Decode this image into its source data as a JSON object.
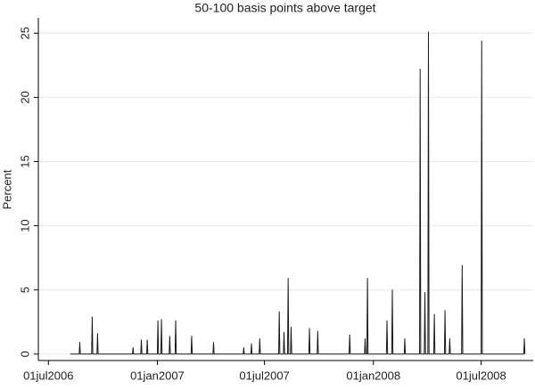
{
  "chart_data": {
    "type": "line",
    "title": "50-100 basis points above target",
    "ylabel": "Percent",
    "x": [
      "2006-08-07",
      "2006-08-22",
      "2006-08-23",
      "2006-08-24",
      "2006-09-12",
      "2006-09-13",
      "2006-09-14",
      "2006-09-21",
      "2006-09-22",
      "2006-09-23",
      "2006-11-20",
      "2006-11-21",
      "2006-11-22",
      "2006-12-04",
      "2006-12-05",
      "2006-12-06",
      "2006-12-14",
      "2006-12-15",
      "2006-12-16",
      "2007-01-01",
      "2007-01-02",
      "2007-01-03",
      "2007-01-07",
      "2007-01-08",
      "2007-01-09",
      "2007-01-21",
      "2007-01-22",
      "2007-01-23",
      "2007-01-31",
      "2007-02-01",
      "2007-02-02",
      "2007-02-27",
      "2007-02-28",
      "2007-03-01",
      "2007-04-05",
      "2007-04-06",
      "2007-04-07",
      "2007-05-26",
      "2007-05-27",
      "2007-05-28",
      "2007-06-08",
      "2007-06-09",
      "2007-06-10",
      "2007-06-22",
      "2007-06-23",
      "2007-06-24",
      "2007-07-25",
      "2007-07-26",
      "2007-07-27",
      "2007-08-02",
      "2007-08-03",
      "2007-08-04",
      "2007-08-09",
      "2007-08-10",
      "2007-08-11",
      "2007-08-14",
      "2007-08-15",
      "2007-08-16",
      "2007-09-14",
      "2007-09-15",
      "2007-09-16",
      "2007-09-28",
      "2007-09-29",
      "2007-09-30",
      "2007-11-21",
      "2007-11-22",
      "2007-11-23",
      "2007-12-17",
      "2007-12-18",
      "2007-12-19",
      "2007-12-21",
      "2007-12-22",
      "2007-12-23",
      "2008-01-23",
      "2008-01-24",
      "2008-01-25",
      "2008-02-01",
      "2008-02-02",
      "2008-02-03",
      "2008-02-22",
      "2008-02-23",
      "2008-02-24",
      "2008-03-19",
      "2008-03-20",
      "2008-03-21",
      "2008-03-27",
      "2008-03-28",
      "2008-03-29",
      "2008-04-02",
      "2008-04-03",
      "2008-04-04",
      "2008-04-12",
      "2008-04-13",
      "2008-04-14",
      "2008-04-30",
      "2008-05-01",
      "2008-05-02",
      "2008-05-08",
      "2008-05-09",
      "2008-05-10",
      "2008-05-29",
      "2008-05-30",
      "2008-05-31",
      "2008-07-01",
      "2008-07-02",
      "2008-07-03",
      "2008-09-11",
      "2008-09-12",
      "2008-09-13"
    ],
    "values": [
      0,
      0,
      0.9,
      0,
      0,
      2.9,
      0,
      0,
      1.6,
      0,
      0,
      0.5,
      0,
      0,
      1.1,
      0,
      0,
      1.1,
      0,
      0,
      2.6,
      0,
      0,
      2.7,
      0,
      0,
      1.4,
      0,
      0,
      2.6,
      0,
      0,
      1.4,
      0,
      0,
      0.9,
      0,
      0,
      0.5,
      0,
      0,
      0.8,
      0,
      0,
      1.2,
      0,
      0,
      3.3,
      0,
      0,
      1.7,
      0,
      0,
      5.9,
      0,
      0,
      2.1,
      0,
      0,
      2.0,
      0,
      0,
      1.8,
      0,
      0,
      1.5,
      0,
      0,
      1.2,
      0,
      0,
      5.9,
      0,
      0,
      2.6,
      0,
      0,
      5.0,
      0,
      0,
      1.2,
      0,
      0,
      22.2,
      0,
      0,
      4.8,
      0,
      0,
      25.1,
      0,
      0,
      3.1,
      0,
      0,
      3.4,
      0,
      0,
      1.2,
      0,
      0,
      6.9,
      0,
      0,
      24.4,
      0,
      0,
      1.2,
      0
    ],
    "color": "#1a1a1a",
    "xlim": [
      "2006-06-14",
      "2008-09-27"
    ],
    "xticks": [
      {
        "value": "2006-07-01",
        "label": "01jul2006"
      },
      {
        "value": "2007-01-01",
        "label": "01jan2007"
      },
      {
        "value": "2007-07-01",
        "label": "01jul2007"
      },
      {
        "value": "2008-01-01",
        "label": "01jan2008"
      },
      {
        "value": "2008-07-01",
        "label": "01jul2008"
      }
    ],
    "ylim": [
      -0.5,
      26.2
    ],
    "yticks": [
      0,
      5,
      10,
      15,
      20,
      25
    ],
    "grid": true
  }
}
